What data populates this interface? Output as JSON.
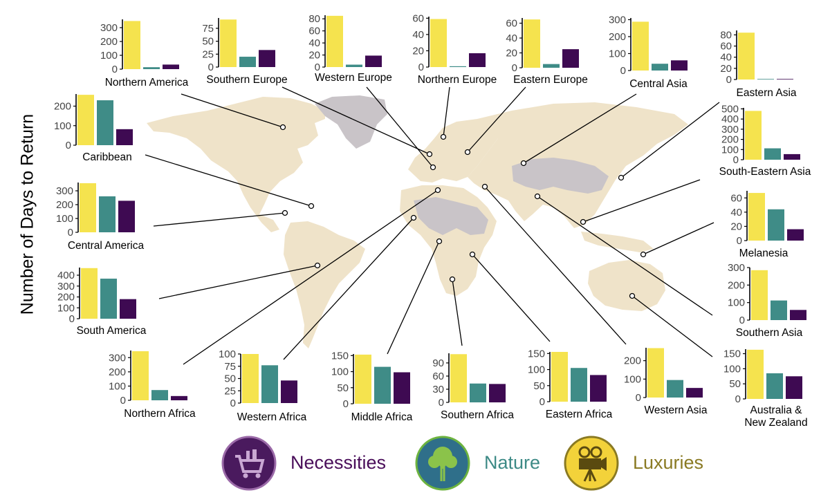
{
  "y_axis_label": "Number of Days to Return",
  "colors": {
    "luxuries": "#f5e34e",
    "nature": "#3f8c87",
    "necessities": "#3e0a52",
    "land": "#efe3c9",
    "land_gray": "#c9c4c8"
  },
  "legend": {
    "necessities": {
      "label": "Necessities",
      "icon": "shopping-cart-icon",
      "color": "#4a0e5a"
    },
    "nature": {
      "label": "Nature",
      "icon": "tree-icon",
      "color": "#3d8a86"
    },
    "luxuries": {
      "label": "Luxuries",
      "icon": "film-camera-icon",
      "color": "#8a7a23"
    }
  },
  "chart_data": {
    "type": "bar",
    "series_order": [
      "Luxuries",
      "Nature",
      "Necessities"
    ],
    "panels": [
      {
        "region": "Northern America",
        "ticks": [
          0,
          100,
          200,
          300
        ],
        "ylim": [
          0,
          360
        ],
        "values": [
          348,
          14,
          33
        ]
      },
      {
        "region": "Southern Europe",
        "ticks": [
          0,
          25,
          50,
          75
        ],
        "ylim": [
          0,
          95
        ],
        "values": [
          92,
          20,
          33
        ]
      },
      {
        "region": "Western Europe",
        "ticks": [
          0,
          20,
          40,
          60,
          80
        ],
        "ylim": [
          0,
          86
        ],
        "values": [
          85,
          4,
          19
        ]
      },
      {
        "region": "Northern Europe",
        "ticks": [
          0,
          20,
          40,
          60
        ],
        "ylim": [
          0,
          62
        ],
        "values": [
          59,
          1,
          17
        ]
      },
      {
        "region": "Eastern Europe",
        "ticks": [
          0,
          20,
          40,
          60
        ],
        "ylim": [
          0,
          67
        ],
        "values": [
          65,
          5,
          25
        ]
      },
      {
        "region": "Central Asia",
        "ticks": [
          0,
          100,
          200,
          300
        ],
        "ylim": [
          0,
          310
        ],
        "values": [
          288,
          40,
          60
        ]
      },
      {
        "region": "Eastern Asia",
        "ticks": [
          0,
          20,
          40,
          60,
          80
        ],
        "ylim": [
          0,
          88
        ],
        "values": [
          84,
          1,
          1
        ]
      },
      {
        "region": "Caribbean",
        "ticks": [
          0,
          100,
          200
        ],
        "ylim": [
          0,
          262
        ],
        "values": [
          258,
          230,
          82
        ]
      },
      {
        "region": "South-Eastern Asia",
        "ticks": [
          0,
          100,
          200,
          300,
          400,
          500
        ],
        "ylim": [
          0,
          510
        ],
        "values": [
          480,
          112,
          55
        ]
      },
      {
        "region": "Central America",
        "ticks": [
          0,
          100,
          200,
          300
        ],
        "ylim": [
          0,
          360
        ],
        "values": [
          355,
          260,
          228
        ]
      },
      {
        "region": "Melanesia",
        "ticks": [
          0,
          20,
          40,
          60
        ],
        "ylim": [
          0,
          70
        ],
        "values": [
          67,
          44,
          16
        ]
      },
      {
        "region": "South America",
        "ticks": [
          0,
          100,
          200,
          300,
          400
        ],
        "ylim": [
          0,
          470
        ],
        "values": [
          465,
          368,
          180
        ]
      },
      {
        "region": "Southern Asia",
        "ticks": [
          0,
          100,
          200,
          300
        ],
        "ylim": [
          0,
          300
        ],
        "values": [
          285,
          112,
          58
        ]
      },
      {
        "region": "Northern Africa",
        "ticks": [
          0,
          100,
          200,
          300
        ],
        "ylim": [
          0,
          350
        ],
        "values": [
          345,
          72,
          30
        ]
      },
      {
        "region": "Western Africa",
        "ticks": [
          0,
          25,
          50,
          75,
          100
        ],
        "ylim": [
          0,
          100
        ],
        "values": [
          100,
          77,
          46
        ]
      },
      {
        "region": "Middle Africa",
        "ticks": [
          0,
          50,
          100,
          150
        ],
        "ylim": [
          0,
          155
        ],
        "values": [
          153,
          115,
          98
        ]
      },
      {
        "region": "Southern Africa",
        "ticks": [
          0,
          30,
          60,
          90
        ],
        "ylim": [
          0,
          112
        ],
        "values": [
          110,
          43,
          42
        ]
      },
      {
        "region": "Eastern Africa",
        "ticks": [
          0,
          50,
          100,
          150
        ],
        "ylim": [
          0,
          155
        ],
        "values": [
          155,
          105,
          83
        ]
      },
      {
        "region": "Western Asia",
        "ticks": [
          0,
          100,
          200
        ],
        "ylim": [
          0,
          270
        ],
        "values": [
          268,
          95,
          52
        ]
      },
      {
        "region": "Australia & New Zealand",
        "ticks": [
          0,
          50,
          100,
          150
        ],
        "ylim": [
          0,
          165
        ],
        "values": [
          163,
          85,
          75
        ]
      }
    ]
  }
}
